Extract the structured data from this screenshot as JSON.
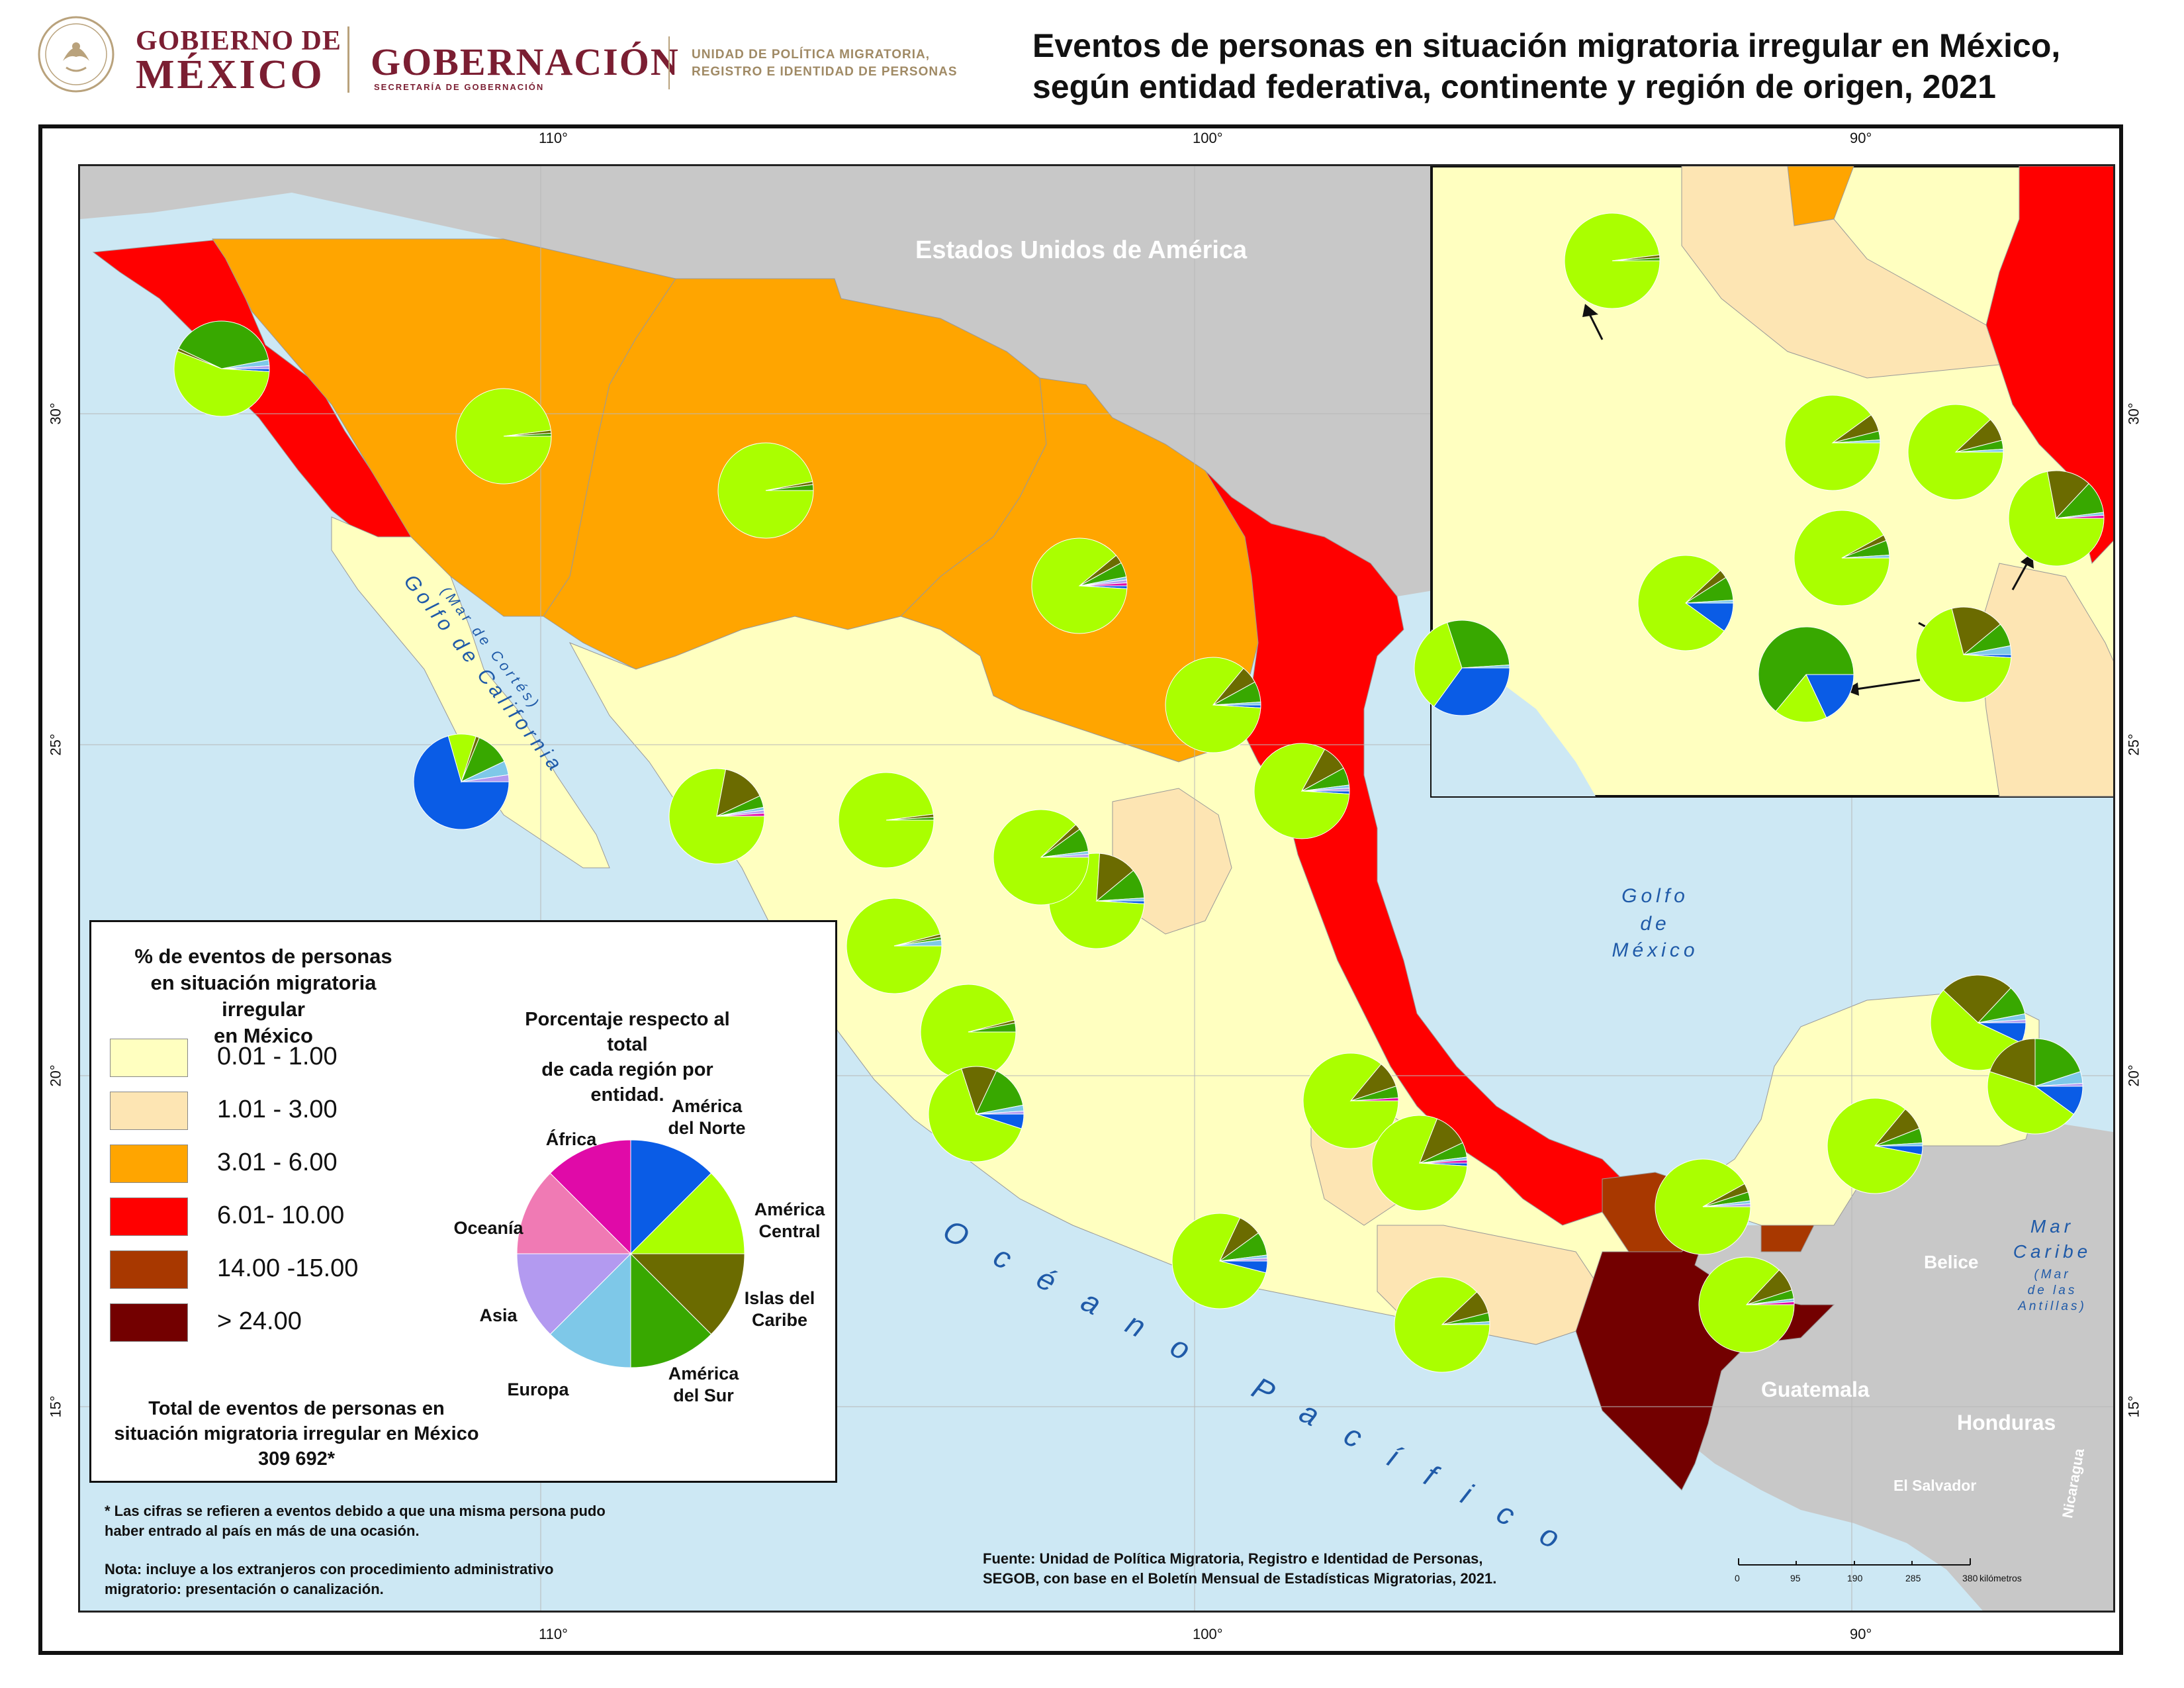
{
  "header": {
    "gobierno_line1": "GOBIERNO DE",
    "gobierno_line2": "MÉXICO",
    "gobernacion": "GOBERNACIÓN",
    "secretaria": "SECRETARÍA DE GOBERNACIÓN",
    "unidad_line1": "UNIDAD DE POLÍTICA MIGRATORIA,",
    "unidad_line2": "REGISTRO E IDENTIDAD DE PERSONAS",
    "title_line1": "Eventos de personas en situación migratoria irregular en México,",
    "title_line2": "según entidad federativa, continente y región de origen, 2021"
  },
  "graticule": {
    "lon_top": [
      "110°",
      "100°",
      "90°"
    ],
    "lon_bottom": [
      "110°",
      "100°",
      "90°"
    ],
    "lat_left": [
      "30°",
      "25°",
      "20°",
      "15°"
    ],
    "lat_right": [
      "30°",
      "25°",
      "20°",
      "15°"
    ]
  },
  "map_labels": {
    "usa": "Estados Unidos de América",
    "golfo_california_1": "Golfo de California",
    "golfo_california_2": "(Mar de Cortés)",
    "golfo_mexico_1": "Golfo",
    "golfo_mexico_2": "de",
    "golfo_mexico_3": "México",
    "oceano_pacifico": "Océano Pacífico",
    "mar_caribe_1": "Mar",
    "mar_caribe_2": "Caribe",
    "mar_caribe_3": "(Mar",
    "mar_caribe_4": "de las",
    "mar_caribe_5": "Antillas)",
    "belice": "Belice",
    "guatemala": "Guatemala",
    "honduras": "Honduras",
    "el_salvador": "El Salvador",
    "nicaragua": "Nicaragua"
  },
  "legend": {
    "title_line1": "% de eventos de personas",
    "title_line2": "en situación migratoria irregular",
    "title_line3": "en México",
    "classes": [
      {
        "label": "0.01 -  1.00",
        "color": "#ffffc0"
      },
      {
        "label": "1.01 -  3.00",
        "color": "#fde5b3"
      },
      {
        "label": "3.01 -  6.00",
        "color": "#ffa500"
      },
      {
        "label": "6.01- 10.00",
        "color": "#ff0000"
      },
      {
        "label": "14.00 -15.00",
        "color": "#a83800"
      },
      {
        "label": "> 24.00",
        "color": "#730000"
      }
    ],
    "pie_note_line1": "Porcentaje respecto al total",
    "pie_note_line2": "de cada región por entidad.",
    "pie_categories": [
      {
        "label": "América del Norte",
        "color": "#0a5ce6"
      },
      {
        "label": "América Central",
        "color": "#aaff00"
      },
      {
        "label": "Islas del Caribe",
        "color": "#6b6b00"
      },
      {
        "label": "América del Sur",
        "color": "#38a800"
      },
      {
        "label": "Europa",
        "color": "#7ec8e8"
      },
      {
        "label": "Asia",
        "color": "#b39af0"
      },
      {
        "label": "Oceanía",
        "color": "#f07ab4"
      },
      {
        "label": "África",
        "color": "#e00aa8"
      }
    ],
    "total_line1": "Total de eventos de personas en",
    "total_line2": "situación migratoria irregular en México",
    "total_value": "309 692*"
  },
  "notes": {
    "asterisk_line1": "* Las cifras se refieren a eventos debido a que una misma persona pudo",
    "asterisk_line2": "haber entrado al país en más de una ocasión.",
    "nota_line1": "Nota: incluye a los extranjeros con procedimiento administrativo",
    "nota_line2": "migratorio: presentación o canalización.",
    "source_line1": "Fuente: Unidad de Política Migratoria, Registro e Identidad de Personas,",
    "source_line2": "SEGOB, con base en el Boletín Mensual de Estadísticas Migratorias, 2021."
  },
  "scale_bar": {
    "ticks": [
      "0",
      "95",
      "190",
      "285",
      "380"
    ],
    "unit": "kilómetros"
  },
  "colors": {
    "water": "#cde8f4",
    "foreign_land": "#c8c8c8",
    "title_maroon": "#7b1e32",
    "gold": "#a08a65"
  }
}
